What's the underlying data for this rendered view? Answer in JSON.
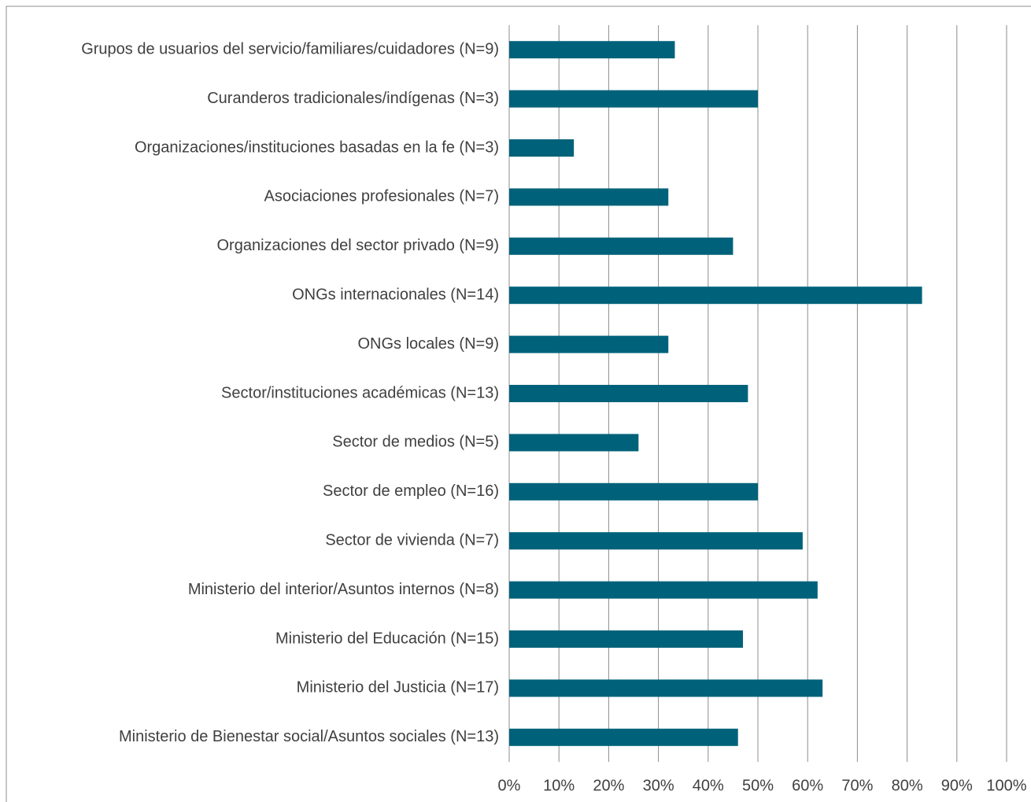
{
  "chart_data": {
    "type": "hbar",
    "categories": [
      "Grupos de usuarios del servicio/familiares/cuidadores (N=9)",
      "Curanderos tradicionales/indígenas (N=3)",
      "Organizaciones/instituciones basadas en la fe (N=3)",
      "Asociaciones profesionales (N=7)",
      "Organizaciones del sector privado (N=9)",
      "ONGs internacionales (N=14)",
      "ONGs locales (N=9)",
      "Sector/instituciones académicas (N=13)",
      "Sector de medios (N=5)",
      "Sector de empleo (N=16)",
      "Sector de vivienda (N=7)",
      "Ministerio del interior/Asuntos internos (N=8)",
      "Ministerio del Educación (N=15)",
      "Ministerio del Justicia (N=17)",
      "Ministerio de Bienestar social/Asuntos sociales (N=13)"
    ],
    "values": [
      33.3,
      50,
      13,
      32,
      45,
      83,
      32,
      48,
      26,
      50,
      59,
      62,
      47,
      63,
      46
    ],
    "color": "#00627a",
    "xlim": [
      0,
      100
    ],
    "xticks": [
      {
        "value": 0,
        "label": "0%"
      },
      {
        "value": 10,
        "label": "10%"
      },
      {
        "value": 20,
        "label": "20%"
      },
      {
        "value": 30,
        "label": "30%"
      },
      {
        "value": 40,
        "label": "40%"
      },
      {
        "value": 50,
        "label": "50%"
      },
      {
        "value": 60,
        "label": "60%"
      },
      {
        "value": 70,
        "label": "70%"
      },
      {
        "value": 80,
        "label": "80%"
      },
      {
        "value": 90,
        "label": "90%"
      },
      {
        "value": 100,
        "label": "100%"
      }
    ],
    "grid": true
  }
}
